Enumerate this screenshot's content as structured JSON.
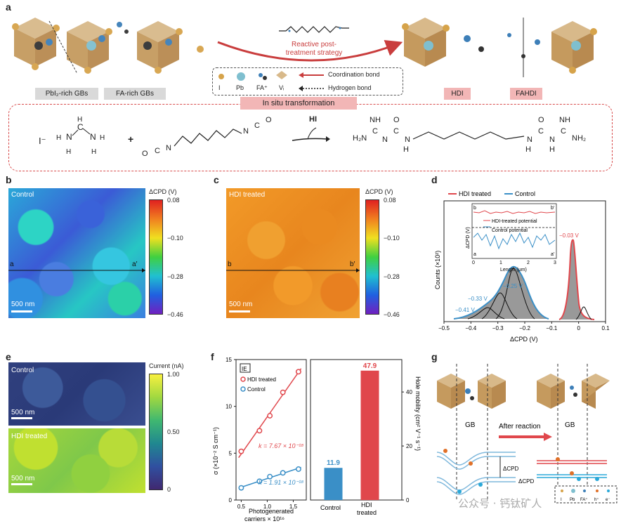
{
  "panel_a": {
    "label": "a",
    "tags_left": [
      "PbI₂-rich GBs",
      "FA-rich GBs"
    ],
    "tags_right": [
      "HDI",
      "FAHDI"
    ],
    "arrow_text": [
      "Reactive post-",
      "treatment strategy"
    ],
    "legend": {
      "items": [
        "I",
        "Pb",
        "FA⁺",
        "Vᵢ"
      ],
      "coordination": "Coordination bond",
      "hydrogen": "Hydrogen bond"
    },
    "transformation": "In situ transformation",
    "reaction": {
      "iodide": "I⁻",
      "plus": "+",
      "reagent": "HI"
    }
  },
  "panel_b": {
    "label": "b",
    "title": "Control",
    "scale": "500 nm",
    "line": [
      "a",
      "a′"
    ],
    "cbar_title": "ΔCPD (V)",
    "cbar_ticks": [
      "0.08",
      "−0.10",
      "−0.28",
      "−0.46"
    ]
  },
  "panel_c": {
    "label": "c",
    "title": "HDI treated",
    "scale": "500 nm",
    "line": [
      "b",
      "b′"
    ],
    "cbar_title": "ΔCPD (V)",
    "cbar_ticks": [
      "0.08",
      "−0.10",
      "−0.28",
      "−0.46"
    ]
  },
  "panel_d": {
    "label": "d",
    "legend": [
      "HDI treated",
      "Control"
    ],
    "colors": {
      "hdi": "#e0474c",
      "control": "#3a8fc7"
    },
    "inset": {
      "labels": [
        "b",
        "b′",
        "a",
        "a′"
      ],
      "legend": [
        "HDI-treated potential",
        "Control potential"
      ],
      "ylabel": "ΔCPD (V)",
      "xlabel": "Length (μm)",
      "xticks": [
        "0",
        "1",
        "2",
        "3"
      ]
    },
    "annotations": [
      "−0.41 V",
      "−0.33 V",
      "−0.25 V",
      "−0.03 V"
    ]
  },
  "panel_e": {
    "label": "e",
    "top": "Control",
    "bottom": "HDI treated",
    "scale": "500 nm",
    "cbar_title": "Current (nA)",
    "cbar_ticks": [
      "1.00",
      "0.50",
      "0"
    ]
  },
  "panel_f": {
    "label": "f",
    "legend": [
      "HDI treated",
      "Control"
    ],
    "k_hdi": "k = 7.67 × 10⁻¹⁸",
    "k_control": "k = 1.91 × 10⁻¹⁸",
    "ylabel": "σ (×10⁻² S cm⁻¹)",
    "xlabel": [
      "Photogenerated",
      "carriers × 10¹⁶"
    ],
    "ylabel2": "Hole mobility (cm² V⁻¹ s⁻¹)",
    "bar_labels": [
      "Control",
      "HDI",
      "treated"
    ]
  },
  "panel_g": {
    "label": "g",
    "gb": [
      "GB",
      "GB"
    ],
    "after": "After reaction",
    "dcpd": [
      "ΔCPD",
      "ΔCPD"
    ],
    "legend": [
      "I",
      "Pb",
      "FA⁺",
      "h⁺",
      "e⁻"
    ]
  },
  "watermark": "公众号 · 钙钛矿人",
  "chart_data": [
    {
      "type": "scatter",
      "panel": "f-left",
      "xlabel": "Photogenerated carriers × 10¹⁶",
      "ylabel": "σ (×10⁻² S cm⁻¹)",
      "xlim": [
        0.4,
        1.75
      ],
      "ylim": [
        0,
        15
      ],
      "xticks": [
        0.5,
        1.0,
        1.5
      ],
      "yticks": [
        0,
        5,
        10,
        15
      ],
      "series": [
        {
          "name": "HDI treated",
          "color": "#e0474c",
          "x": [
            0.5,
            0.85,
            1.05,
            1.3,
            1.6
          ],
          "y": [
            5.2,
            7.4,
            9.0,
            11.5,
            13.7
          ]
        },
        {
          "name": "Control",
          "color": "#3a8fc7",
          "x": [
            0.5,
            0.85,
            1.05,
            1.3,
            1.6
          ],
          "y": [
            1.3,
            2.0,
            2.5,
            2.9,
            3.3
          ]
        }
      ]
    },
    {
      "type": "bar",
      "panel": "f-right",
      "ylabel": "Hole mobility (cm² V⁻¹ s⁻¹)",
      "ylim": [
        0,
        52
      ],
      "yticks": [
        0,
        20,
        40
      ],
      "categories": [
        "Control",
        "HDI treated"
      ],
      "values": [
        11.9,
        47.9
      ],
      "value_labels": [
        "11.9",
        "47.9"
      ],
      "colors": [
        "#3a8fc7",
        "#e0474c"
      ]
    },
    {
      "type": "line",
      "panel": "d",
      "xlabel": "ΔCPD (V)",
      "ylabel": "Counts (×10²)",
      "xlim": [
        -0.5,
        0.1
      ],
      "xticks": [
        -0.5,
        -0.4,
        -0.3,
        -0.2,
        -0.1,
        0,
        0.1
      ],
      "series": [
        {
          "name": "Control",
          "peaks_V": [
            -0.41,
            -0.33,
            -0.25
          ]
        },
        {
          "name": "HDI treated",
          "peaks_V": [
            -0.03
          ]
        }
      ]
    }
  ]
}
